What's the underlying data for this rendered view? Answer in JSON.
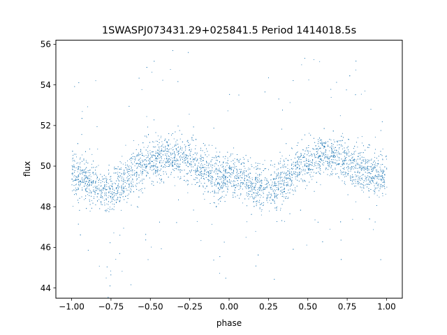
{
  "chart_data": {
    "type": "scatter",
    "title": "1SWASPJ073431.29+025841.5 Period 1414018.5s",
    "xlabel": "phase",
    "ylabel": "flux",
    "xlim": [
      -1.1,
      1.1
    ],
    "ylim": [
      43.5,
      56.2
    ],
    "grid": false,
    "legend": "none",
    "point_color": "#1f77b4",
    "x_ticks": [
      -1.0,
      -0.75,
      -0.5,
      -0.25,
      0.0,
      0.25,
      0.5,
      0.75,
      1.0
    ],
    "x_tick_labels": [
      "−1.00",
      "−0.75",
      "−0.50",
      "−0.25",
      "0.00",
      "0.25",
      "0.50",
      "0.75",
      "1.00"
    ],
    "y_ticks": [
      44,
      46,
      48,
      50,
      52,
      54,
      56
    ],
    "y_tick_labels": [
      "44",
      "46",
      "48",
      "50",
      "52",
      "54",
      "56"
    ],
    "series": [
      {
        "description_points": "phase-folded light curve, repeated over two cycles",
        "x": [
          -1.0,
          -0.95,
          -0.9,
          -0.85,
          -0.8,
          -0.75,
          -0.7,
          -0.65,
          -0.6,
          -0.55,
          -0.5,
          -0.45,
          -0.4,
          -0.35,
          -0.3,
          -0.25,
          -0.2,
          -0.15,
          -0.1,
          -0.05,
          0.0,
          0.05,
          0.1,
          0.15,
          0.2,
          0.25,
          0.3,
          0.35,
          0.4,
          0.45,
          0.5,
          0.55,
          0.6,
          0.65,
          0.7,
          0.75,
          0.8,
          0.85,
          0.9,
          0.95,
          1.0
        ],
        "y": [
          49.6,
          49.5,
          49.3,
          49.0,
          48.8,
          48.9,
          49.1,
          49.4,
          49.7,
          50.0,
          50.2,
          50.4,
          50.5,
          50.5,
          50.4,
          50.2,
          50.0,
          49.8,
          49.6,
          49.5,
          49.6,
          49.5,
          49.3,
          49.0,
          48.8,
          48.9,
          49.1,
          49.4,
          49.7,
          50.0,
          50.2,
          50.4,
          50.5,
          50.5,
          50.4,
          50.2,
          50.0,
          49.8,
          49.6,
          49.5,
          49.6
        ]
      }
    ]
  }
}
